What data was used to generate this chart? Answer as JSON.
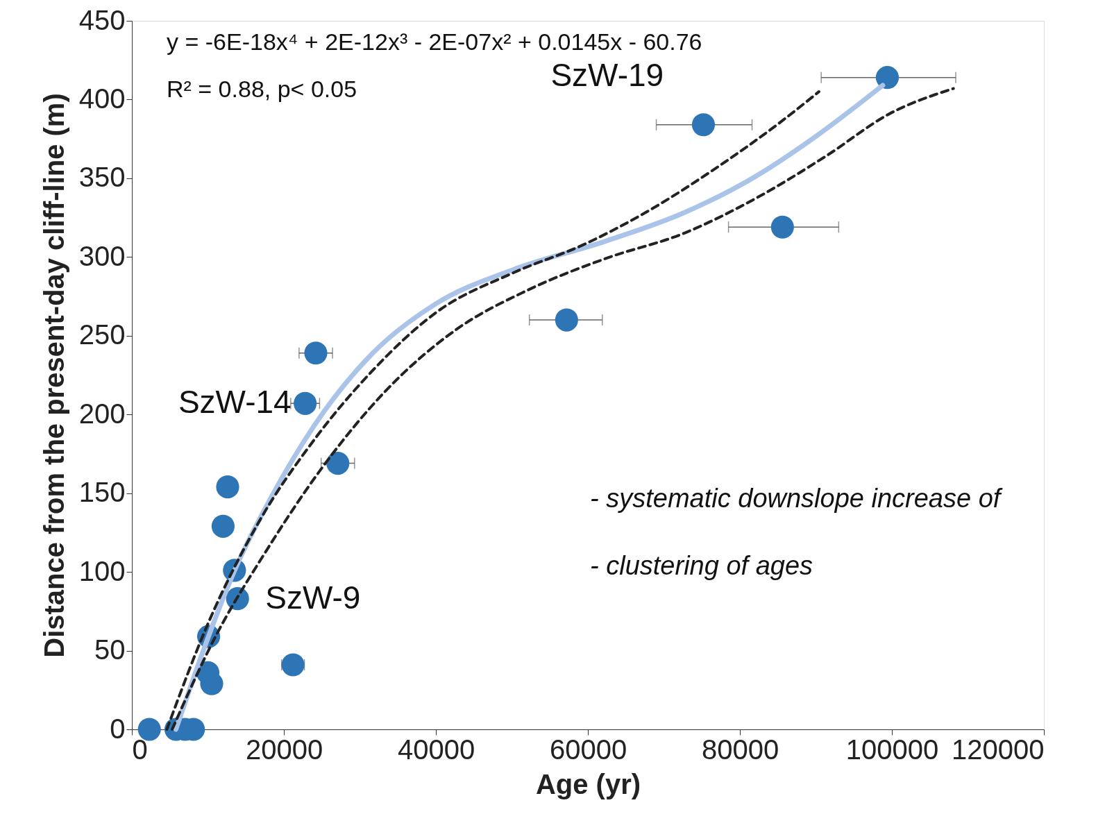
{
  "chart_data": {
    "type": "scatter",
    "xlabel": "Age (yr)",
    "ylabel": "Distance from the present-day cliff-line (m)",
    "xlim": [
      0,
      120000
    ],
    "xticks": [
      0,
      20000,
      40000,
      60000,
      80000,
      100000,
      120000
    ],
    "ylim": [
      0,
      450
    ],
    "yticks": [
      0,
      50,
      100,
      150,
      200,
      250,
      300,
      350,
      400,
      450
    ],
    "grid": false,
    "annotations": [
      "y = -6E-18x⁴ + 2E-12x³ - 2E-07x² + 0.0145x - 60.76",
      "R² = 0.88, p< 0.05",
      "- systematic downslope increase of",
      "- clustering of ages",
      {
        "text": "SzW-19",
        "x": 75200,
        "y": 384
      },
      {
        "text": "SzW-14",
        "x": 22800,
        "y": 207
      },
      {
        "text": "SzW-9",
        "x": 13900,
        "y": 83
      }
    ],
    "series": [
      {
        "color": "#2e75b6",
        "marker": "circle",
        "x": [
          2300,
          5800,
          7000,
          8100,
          10000,
          10500,
          10100,
          13500,
          13900,
          12000,
          12600,
          21200,
          22800,
          24200,
          27100,
          57200,
          75200,
          85600,
          99400
        ],
        "values": [
          0,
          0,
          0,
          0,
          36,
          29,
          59,
          101,
          83,
          129,
          154,
          41,
          207,
          239,
          169,
          260,
          384,
          319,
          414
        ],
        "xerrors": [
          null,
          null,
          null,
          null,
          null,
          null,
          null,
          null,
          null,
          null,
          null,
          1500,
          1900,
          2200,
          2200,
          [
            52300,
            61900
          ],
          [
            69000,
            81600
          ],
          [
            78500,
            93000
          ],
          [
            90700,
            108400
          ]
        ]
      },
      {
        "type": "line",
        "color": "#a9c4e8",
        "line_style": "solid",
        "x": [
          5800,
          10000,
          13700,
          18400,
          24000,
          31500,
          39900,
          50200,
          62300,
          72600,
          82000,
          90400,
          98800
        ],
        "values": [
          0,
          58,
          103,
          148,
          193,
          238,
          270,
          292,
          310,
          328,
          351,
          378,
          409
        ]
      },
      {
        "type": "line",
        "color": "#222222",
        "line_style": "dashed",
        "x": [
          4600,
          10000,
          16500,
          24000,
          31500,
          40100,
          50200,
          59500,
          67500,
          76400,
          85700,
          90400
        ],
        "values": [
          0,
          67,
          130,
          184,
          227,
          265,
          290,
          308,
          328,
          355,
          387,
          405
        ]
      },
      {
        "type": "line",
        "color": "#222222",
        "line_style": "dashed",
        "x": [
          5300,
          10900,
          17500,
          25000,
          33400,
          42700,
          52100,
          62300,
          72600,
          82000,
          91300,
          99700,
          108100
        ],
        "values": [
          0,
          58,
          112,
          166,
          215,
          254,
          279,
          299,
          315,
          337,
          364,
          391,
          407
        ]
      }
    ]
  }
}
